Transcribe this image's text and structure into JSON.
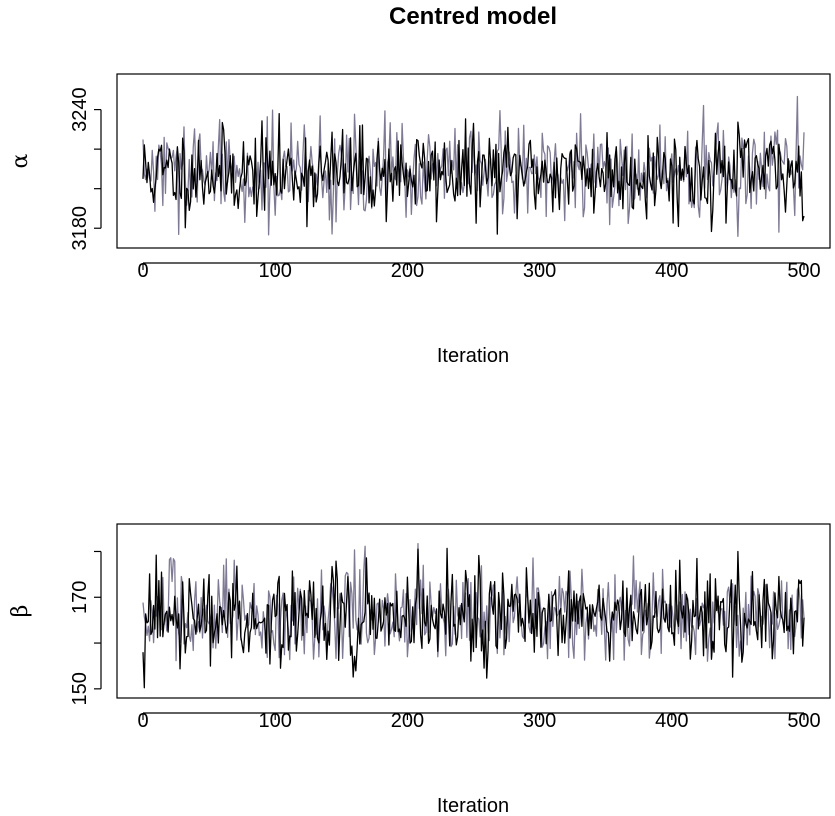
{
  "title": "Centred model",
  "colors": {
    "chain1": "#000000",
    "chain2": "#7f7a94"
  },
  "chart_data": [
    {
      "type": "line",
      "ylabel": "α",
      "xlabel": "Iteration",
      "xlim": [
        0,
        500
      ],
      "ylim": [
        3170,
        3258
      ],
      "xticks": [
        "0",
        "100",
        "200",
        "300",
        "400",
        "500"
      ],
      "yticks": [
        "3180",
        "3240"
      ],
      "ytick_values": [
        3180,
        3200,
        3220,
        3240
      ],
      "grid": false,
      "series": [
        {
          "mean": 3208,
          "sd": 11,
          "min": 3172,
          "max": 3253,
          "seed": 11,
          "n": 501
        },
        {
          "mean": 3208,
          "sd": 12,
          "min": 3173,
          "max": 3249,
          "seed": 29,
          "n": 501
        }
      ]
    },
    {
      "type": "line",
      "ylabel": "β",
      "xlabel": "Iteration",
      "xlim": [
        0,
        500
      ],
      "ylim": [
        148,
        186
      ],
      "xticks": [
        "0",
        "100",
        "200",
        "300",
        "400",
        "500"
      ],
      "yticks": [
        "150",
        "170"
      ],
      "ytick_values": [
        150,
        160,
        170,
        180
      ],
      "grid": false,
      "series": [
        {
          "mean": 166,
          "sd": 5,
          "min": 149,
          "max": 181,
          "seed": 47,
          "n": 501
        },
        {
          "mean": 166,
          "sd": 5,
          "min": 156,
          "max": 185,
          "seed": 83,
          "n": 501
        }
      ]
    }
  ]
}
